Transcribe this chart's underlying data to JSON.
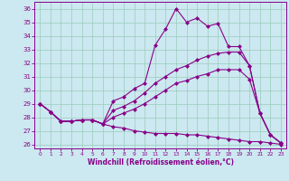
{
  "xlabel": "Windchill (Refroidissement éolien,°C)",
  "bg_color": "#cce8f0",
  "grid_color": "#99ccbb",
  "line_color": "#880088",
  "xlim": [
    -0.5,
    23.5
  ],
  "ylim": [
    25.7,
    36.5
  ],
  "yticks": [
    26,
    27,
    28,
    29,
    30,
    31,
    32,
    33,
    34,
    35,
    36
  ],
  "xticks": [
    0,
    1,
    2,
    3,
    4,
    5,
    6,
    7,
    8,
    9,
    10,
    11,
    12,
    13,
    14,
    15,
    16,
    17,
    18,
    19,
    20,
    21,
    22,
    23
  ],
  "s1_x": [
    0,
    1,
    2,
    3,
    4,
    5,
    6,
    7,
    8,
    9,
    10,
    11,
    12,
    13,
    14,
    15,
    16,
    17,
    18,
    19,
    20,
    21,
    22,
    23
  ],
  "s1_y": [
    29.0,
    28.4,
    27.7,
    27.7,
    27.8,
    27.8,
    27.5,
    29.2,
    29.5,
    30.1,
    30.5,
    33.3,
    34.5,
    36.0,
    35.0,
    35.3,
    34.7,
    34.9,
    33.2,
    33.2,
    31.8,
    28.3,
    26.7,
    26.1
  ],
  "s2_x": [
    0,
    1,
    2,
    3,
    4,
    5,
    6,
    7,
    8,
    9,
    10,
    11,
    12,
    13,
    14,
    15,
    16,
    17,
    18,
    19,
    20,
    21,
    22,
    23
  ],
  "s2_y": [
    29.0,
    28.4,
    27.7,
    27.7,
    27.8,
    27.8,
    27.5,
    28.5,
    28.8,
    29.2,
    29.8,
    30.5,
    31.0,
    31.5,
    31.8,
    32.2,
    32.5,
    32.7,
    32.8,
    32.8,
    31.8,
    28.3,
    26.7,
    26.1
  ],
  "s3_x": [
    0,
    1,
    2,
    3,
    4,
    5,
    6,
    7,
    8,
    9,
    10,
    11,
    12,
    13,
    14,
    15,
    16,
    17,
    18,
    19,
    20,
    21,
    22,
    23
  ],
  "s3_y": [
    29.0,
    28.4,
    27.7,
    27.7,
    27.8,
    27.8,
    27.5,
    28.0,
    28.3,
    28.6,
    29.0,
    29.5,
    30.0,
    30.5,
    30.7,
    31.0,
    31.2,
    31.5,
    31.5,
    31.5,
    30.8,
    28.3,
    26.7,
    26.1
  ],
  "s4_x": [
    0,
    1,
    2,
    3,
    4,
    5,
    6,
    7,
    8,
    9,
    10,
    11,
    12,
    13,
    14,
    15,
    16,
    17,
    18,
    19,
    20,
    21,
    22,
    23
  ],
  "s4_y": [
    29.0,
    28.4,
    27.7,
    27.7,
    27.8,
    27.8,
    27.5,
    27.3,
    27.2,
    27.0,
    26.9,
    26.8,
    26.8,
    26.8,
    26.7,
    26.7,
    26.6,
    26.5,
    26.4,
    26.3,
    26.2,
    26.2,
    26.1,
    26.0
  ]
}
